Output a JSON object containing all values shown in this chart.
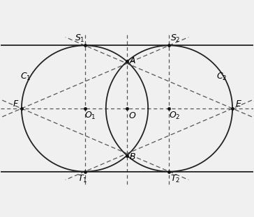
{
  "bg_color": "#f0f0f0",
  "circle_color": "#222222",
  "line_color": "#222222",
  "dashed_color": "#555555",
  "dot_color": "#111111",
  "d_circ": 1.0,
  "r_circ": 1.5,
  "figsize": [
    3.64,
    3.12
  ],
  "dpi": 100,
  "xlim": [
    -3.0,
    3.0
  ],
  "ylim": [
    -2.1,
    2.1
  ],
  "label_fontsize": 9
}
